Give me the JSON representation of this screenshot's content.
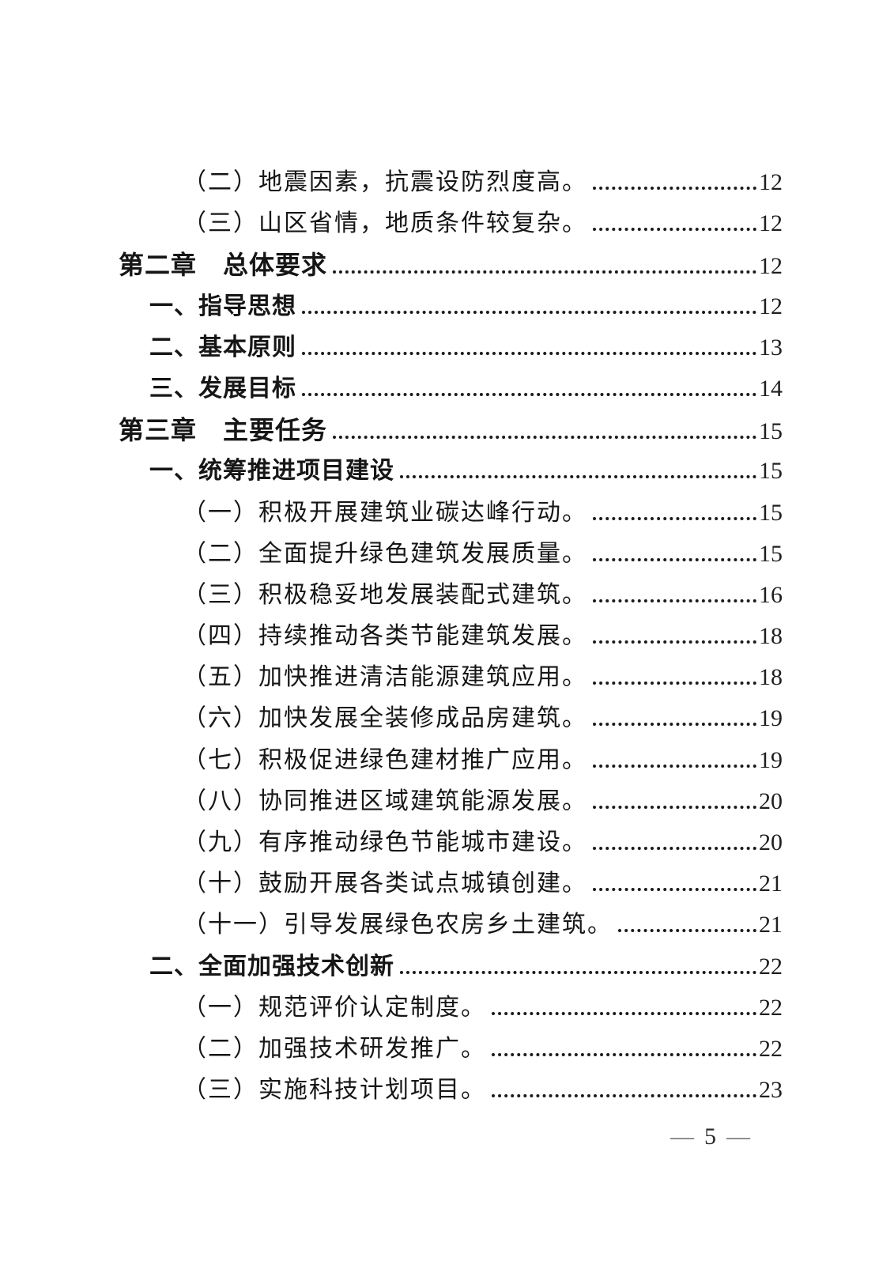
{
  "toc": {
    "entries": [
      {
        "level": "item",
        "label": "（二）地震因素，抗震设防烈度高。",
        "page": "12"
      },
      {
        "level": "item",
        "label": "（三）山区省情，地质条件较复杂。",
        "page": "12"
      },
      {
        "level": "chapter",
        "label": "第二章　总体要求",
        "page": "12"
      },
      {
        "level": "section",
        "label": "一、指导思想",
        "page": "12"
      },
      {
        "level": "section",
        "label": "二、基本原则",
        "page": "13"
      },
      {
        "level": "section",
        "label": "三、发展目标",
        "page": "14"
      },
      {
        "level": "chapter",
        "label": "第三章　主要任务",
        "page": "15"
      },
      {
        "level": "section",
        "label": "一、统筹推进项目建设",
        "page": "15"
      },
      {
        "level": "item",
        "label": "（一）积极开展建筑业碳达峰行动。",
        "page": "15"
      },
      {
        "level": "item",
        "label": "（二）全面提升绿色建筑发展质量。",
        "page": "15"
      },
      {
        "level": "item",
        "label": "（三）积极稳妥地发展装配式建筑。",
        "page": "16"
      },
      {
        "level": "item",
        "label": "（四）持续推动各类节能建筑发展。",
        "page": "18"
      },
      {
        "level": "item",
        "label": "（五）加快推进清洁能源建筑应用。",
        "page": "18"
      },
      {
        "level": "item",
        "label": "（六）加快发展全装修成品房建筑。",
        "page": "19"
      },
      {
        "level": "item",
        "label": "（七）积极促进绿色建材推广应用。",
        "page": "19"
      },
      {
        "level": "item",
        "label": "（八）协同推进区域建筑能源发展。",
        "page": "20"
      },
      {
        "level": "item",
        "label": "（九）有序推动绿色节能城市建设。",
        "page": "20"
      },
      {
        "level": "item",
        "label": "（十）鼓励开展各类试点城镇创建。",
        "page": "21"
      },
      {
        "level": "item",
        "label": "（十一）引导发展绿色农房乡土建筑。",
        "page": "21"
      },
      {
        "level": "section",
        "label": "二、全面加强技术创新",
        "page": "22"
      },
      {
        "level": "item",
        "label": "（一）规范评价认定制度。",
        "page": "22"
      },
      {
        "level": "item",
        "label": "（二）加强技术研发推广。",
        "page": "22"
      },
      {
        "level": "item",
        "label": "（三）实施科技计划项目。",
        "page": "23"
      }
    ]
  },
  "footer": {
    "left_dash": "—",
    "page_number": "5",
    "right_dash": "—"
  },
  "colors": {
    "text": "#161616",
    "leader_dots": "#1b1b1b",
    "footer_dash": "#6b6b6b"
  }
}
